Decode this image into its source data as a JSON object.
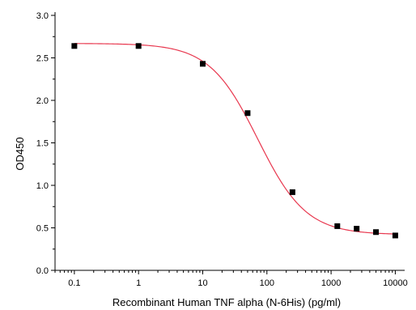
{
  "chart_data": {
    "type": "scatter",
    "title": "",
    "xlabel": "Recombinant Human TNF alpha (N-6His) (pg/ml)",
    "ylabel": "OD450",
    "x_scale": "log",
    "xlim": [
      0.05,
      14000
    ],
    "ylim": [
      0,
      3.0
    ],
    "x_ticks": [
      0.1,
      1,
      10,
      100,
      1000,
      10000
    ],
    "x_tick_labels": [
      "0.1",
      "1",
      "10",
      "100",
      "1000",
      "10000"
    ],
    "y_ticks": [
      0.0,
      0.5,
      1.0,
      1.5,
      2.0,
      2.5,
      3.0
    ],
    "y_tick_labels": [
      "0.0",
      "0.5",
      "1.0",
      "1.5",
      "2.0",
      "2.5",
      "3.0"
    ],
    "grid": false,
    "legend": "none",
    "series": [
      {
        "marker": "square",
        "color": "#000000",
        "x": [
          0.1,
          1,
          10,
          50,
          250,
          1250,
          2500,
          5000,
          10000
        ],
        "y": [
          2.64,
          2.64,
          2.43,
          1.85,
          0.92,
          0.52,
          0.49,
          0.45,
          0.41
        ]
      }
    ],
    "fit_curve": {
      "model": "4PL",
      "color": "#e8384f",
      "top": 2.67,
      "bottom": 0.42,
      "ec50": 72,
      "hill": 1.15
    }
  }
}
